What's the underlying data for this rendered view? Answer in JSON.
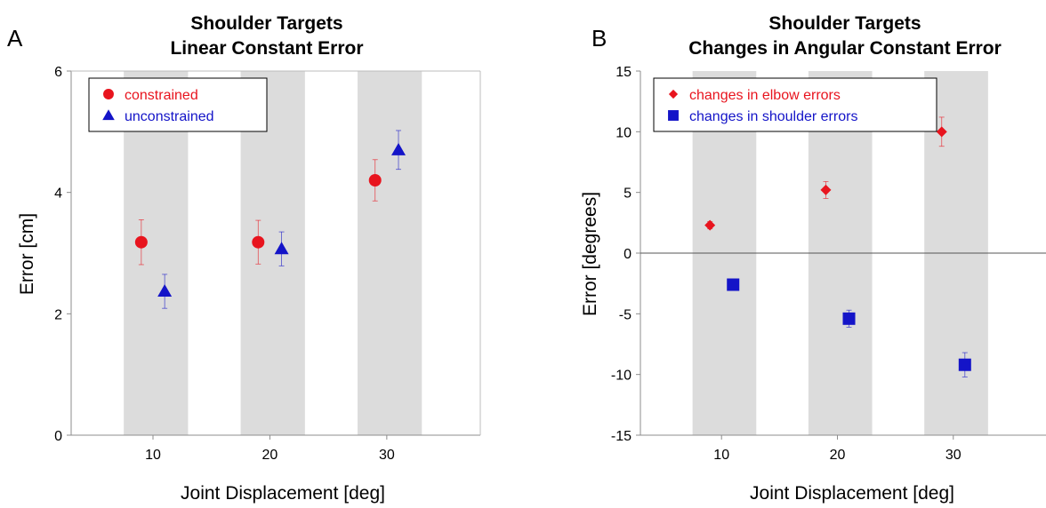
{
  "chart_data": [
    {
      "panel": "A",
      "type": "scatter",
      "title_line1": "Shoulder Targets",
      "title_line2": "Linear Constant Error",
      "xlabel": "Joint Displacement [deg]",
      "ylabel": "Error [cm]",
      "xlim": [
        3,
        38
      ],
      "ylim": [
        0,
        6
      ],
      "yticks": [
        0,
        2,
        4,
        6
      ],
      "xticks": [
        10,
        20,
        30
      ],
      "shaded_bands": [
        [
          7.5,
          13
        ],
        [
          17.5,
          23
        ],
        [
          27.5,
          33
        ]
      ],
      "zero_line": false,
      "legend_position": "top-left",
      "series": [
        {
          "name": "constrained",
          "color": "#e8141e",
          "marker": "circle",
          "x": [
            9,
            19,
            29
          ],
          "y": [
            3.18,
            3.18,
            4.2
          ],
          "err": [
            0.37,
            0.36,
            0.34
          ]
        },
        {
          "name": "unconstrained",
          "color": "#1414c8",
          "marker": "triangle",
          "x": [
            11,
            21,
            31
          ],
          "y": [
            2.37,
            3.07,
            4.7
          ],
          "err": [
            0.28,
            0.28,
            0.32
          ]
        }
      ]
    },
    {
      "panel": "B",
      "type": "scatter",
      "title_line1": "Shoulder Targets",
      "title_line2": "Changes in Angular Constant Error",
      "xlabel": "Joint Displacement [deg]",
      "ylabel": "Error [degrees]",
      "xlim": [
        3,
        38
      ],
      "ylim": [
        -15,
        15
      ],
      "yticks": [
        -15,
        -10,
        -5,
        0,
        5,
        10,
        15
      ],
      "xticks": [
        10,
        20,
        30
      ],
      "shaded_bands": [
        [
          7.5,
          13
        ],
        [
          17.5,
          23
        ],
        [
          27.5,
          33
        ]
      ],
      "zero_line": true,
      "legend_position": "top-left",
      "series": [
        {
          "name": "changes in elbow errors",
          "color": "#e8141e",
          "marker": "diamond",
          "x": [
            9,
            19,
            29
          ],
          "y": [
            2.3,
            5.2,
            10.0
          ],
          "err": [
            0.3,
            0.7,
            1.2
          ]
        },
        {
          "name": "changes in shoulder errors",
          "color": "#1414c8",
          "marker": "square",
          "x": [
            11,
            21,
            31
          ],
          "y": [
            -2.6,
            -5.4,
            -9.2
          ],
          "err": [
            0.3,
            0.7,
            1.0
          ]
        }
      ]
    }
  ]
}
